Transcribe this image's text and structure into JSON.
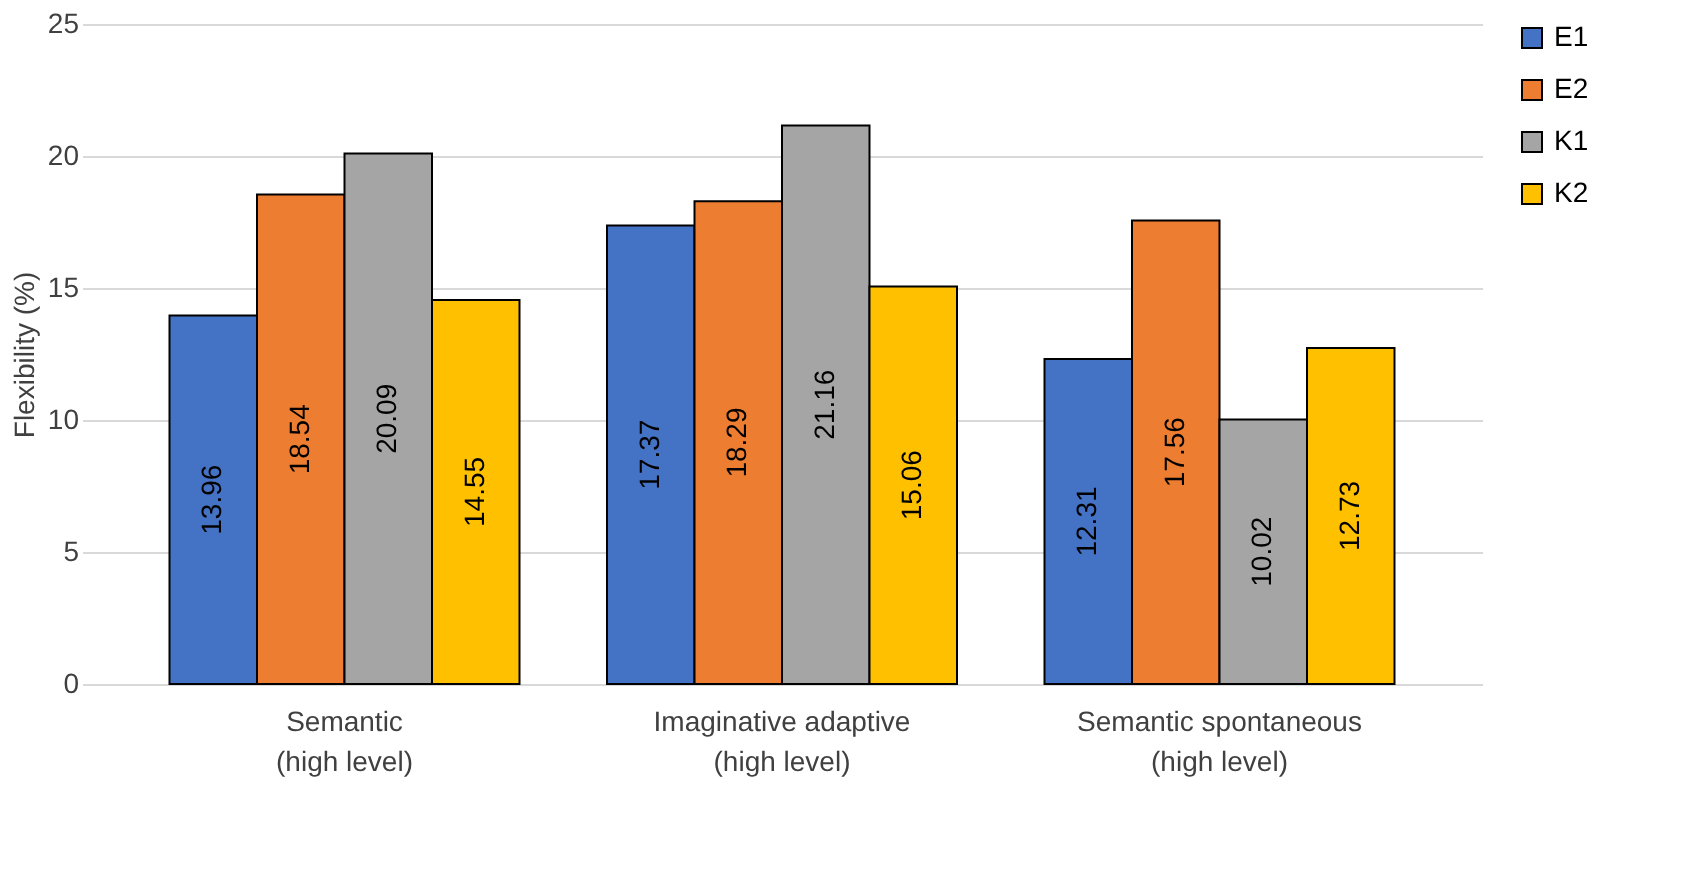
{
  "chart_data": {
    "type": "bar",
    "ylabel": "Flexibility (%)",
    "categories": [
      "Semantic\n(high level)",
      "Imaginative adaptive\n(high level)",
      "Semantic spontaneous\n(high level)"
    ],
    "series": [
      {
        "name": "E1",
        "color": "#4472c4",
        "values": [
          13.96,
          17.37,
          12.31
        ]
      },
      {
        "name": "E2",
        "color": "#ed7d31",
        "values": [
          18.54,
          18.29,
          17.56
        ]
      },
      {
        "name": "K1",
        "color": "#a5a5a5",
        "values": [
          20.09,
          21.16,
          10.02
        ]
      },
      {
        "name": "K2",
        "color": "#ffc000",
        "values": [
          14.55,
          15.06,
          12.73
        ]
      }
    ],
    "ylim": [
      0,
      25
    ],
    "yticks": [
      0,
      5,
      10,
      15,
      20,
      25
    ],
    "grid": "y",
    "legend": "right",
    "data_labels": true
  }
}
